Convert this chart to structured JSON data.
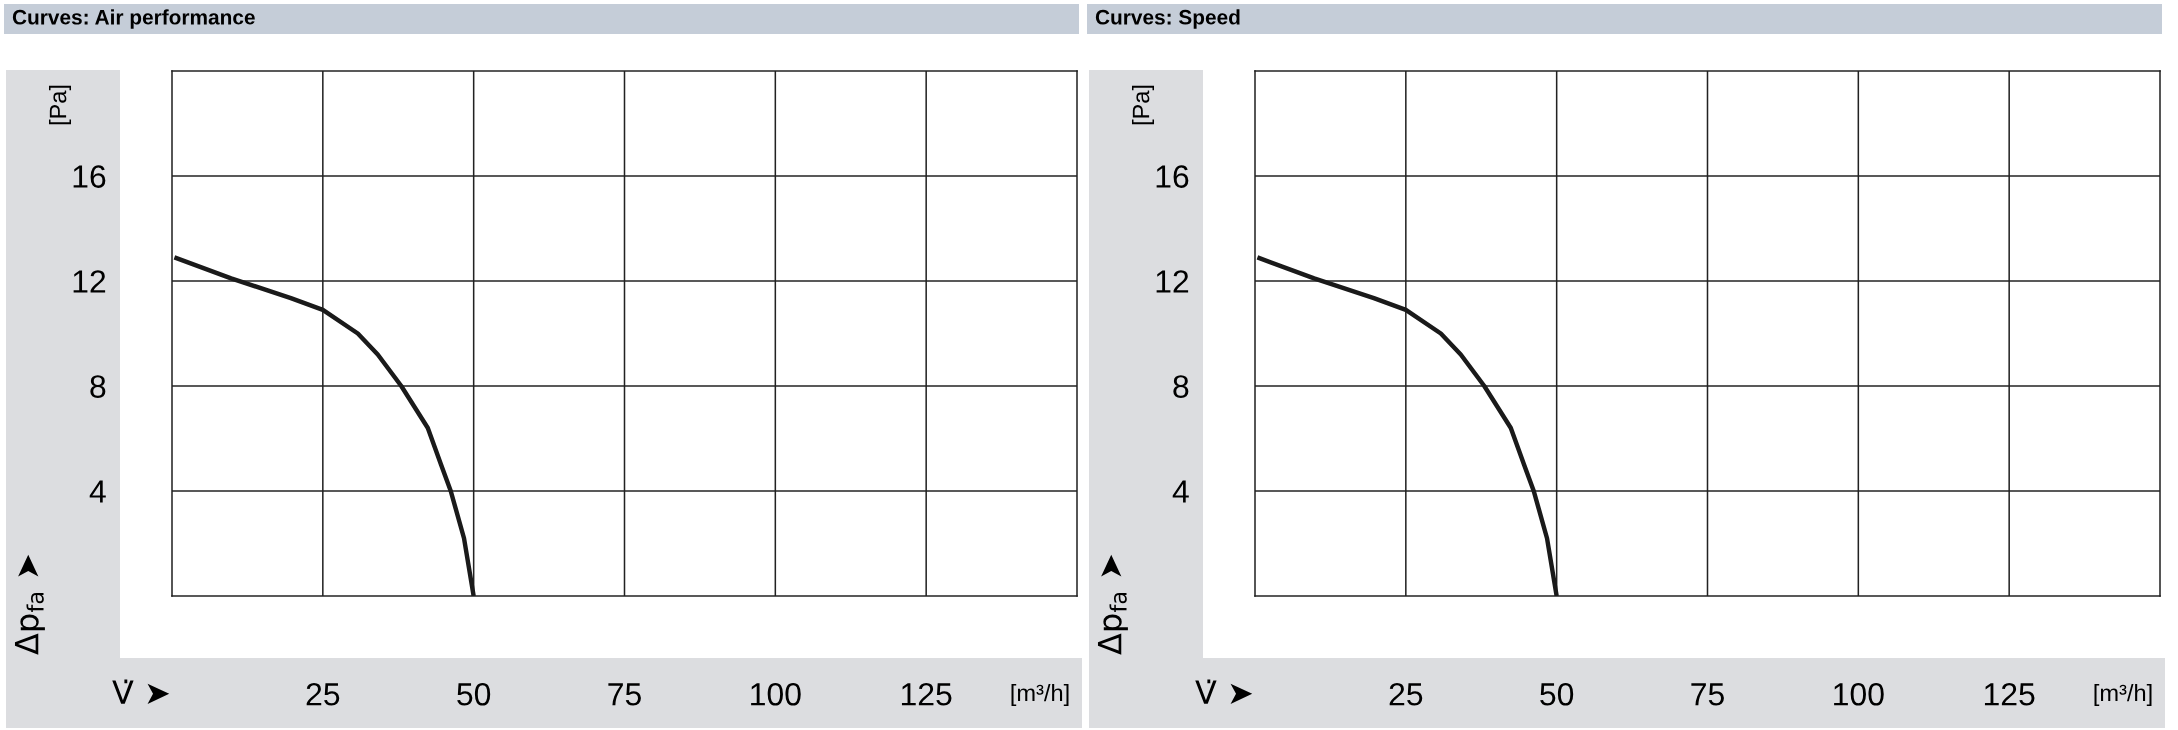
{
  "chart_data": [
    {
      "type": "line",
      "title": "Curves: Air performance",
      "xlabel": "V̇ ➤",
      "ylabel": "Δp$_{fa}$ ➤",
      "annotations": [
        "[m³/h]",
        "[Pa]"
      ],
      "x": [
        0.4,
        9.8,
        19.7,
        25,
        30.8,
        34.1,
        38.0,
        42.4,
        44.6,
        46.2,
        48.4,
        50
      ],
      "series": [
        {
          "color": "#1a1a1a",
          "values": [
            12.9,
            12.1,
            11.35,
            10.9,
            10.0,
            9.2,
            8.0,
            6.4,
            5.0,
            4.0,
            2.2,
            0
          ]
        }
      ],
      "xlim": [
        0,
        150
      ],
      "xticks": [
        25,
        50,
        75,
        100,
        125
      ],
      "ylim": [
        0,
        20
      ],
      "yticks": [
        4,
        8,
        12,
        16
      ],
      "grid": true,
      "marker": "none",
      "line_style": "solid"
    },
    {
      "type": "line",
      "title": "Curves: Speed",
      "xlabel": "V̇ ➤",
      "ylabel": "Δp$_{fa}$ ➤",
      "annotations": [
        "[m³/h]",
        "[Pa]"
      ],
      "x": [
        0.4,
        9.8,
        19.7,
        25,
        30.8,
        34.1,
        38.0,
        42.4,
        44.6,
        46.2,
        48.4,
        50
      ],
      "series": [
        {
          "color": "#1a1a1a",
          "values": [
            12.9,
            12.1,
            11.35,
            10.9,
            10.0,
            9.2,
            8.0,
            6.4,
            5.0,
            4.0,
            2.2,
            0
          ]
        }
      ],
      "xlim": [
        0,
        150
      ],
      "xticks": [
        25,
        50,
        75,
        100,
        125
      ],
      "ylim": [
        0,
        20
      ],
      "yticks": [
        4,
        8,
        12,
        16
      ],
      "grid": true,
      "marker": "none",
      "line_style": "solid"
    }
  ]
}
